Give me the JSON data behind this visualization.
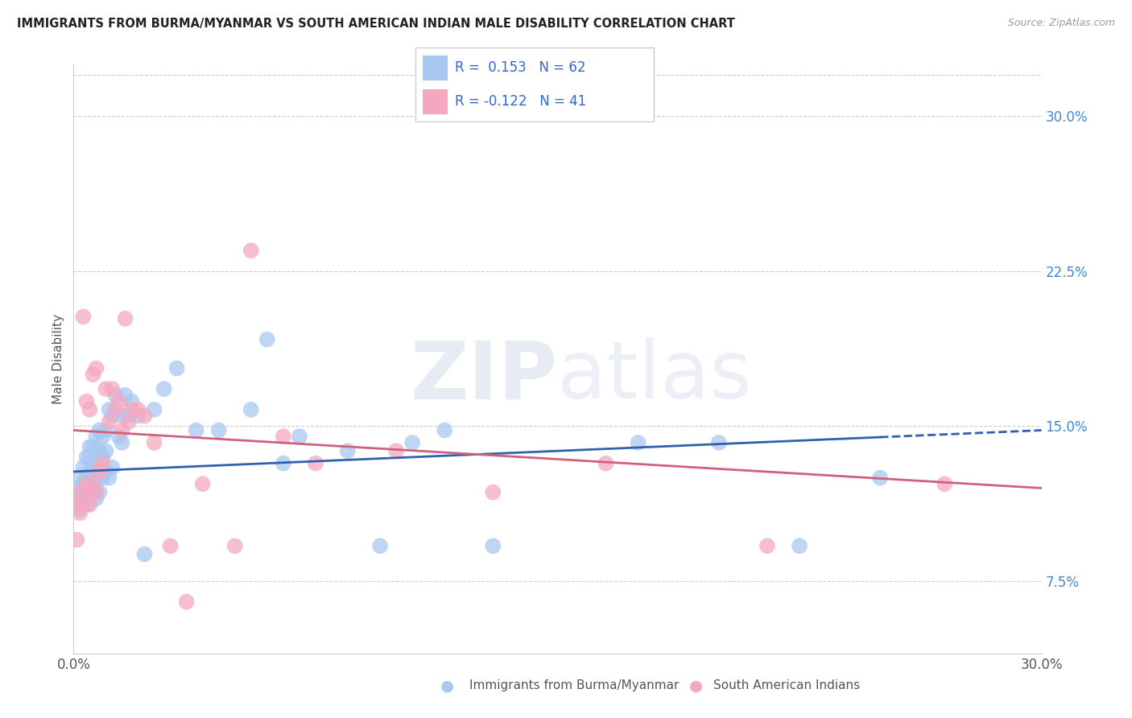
{
  "title": "IMMIGRANTS FROM BURMA/MYANMAR VS SOUTH AMERICAN INDIAN MALE DISABILITY CORRELATION CHART",
  "source": "Source: ZipAtlas.com",
  "ylabel": "Male Disability",
  "x_min": 0.0,
  "x_max": 0.3,
  "y_min": 0.04,
  "y_max": 0.325,
  "y_ticks_right": [
    0.075,
    0.15,
    0.225,
    0.3
  ],
  "y_tick_labels_right": [
    "7.5%",
    "15.0%",
    "22.5%",
    "30.0%"
  ],
  "legend_blue_r": "0.153",
  "legend_blue_n": "62",
  "legend_pink_r": "-0.122",
  "legend_pink_n": "41",
  "legend_label_blue": "Immigrants from Burma/Myanmar",
  "legend_label_pink": "South American Indians",
  "blue_color": "#A8C8F0",
  "pink_color": "#F4A8C0",
  "trend_blue_color": "#3060B0",
  "trend_pink_color": "#D06080",
  "blue_trend_start_y": 0.128,
  "blue_trend_end_y": 0.148,
  "pink_trend_start_y": 0.148,
  "pink_trend_end_y": 0.12,
  "blue_scatter_x": [
    0.001,
    0.002,
    0.002,
    0.002,
    0.003,
    0.003,
    0.003,
    0.004,
    0.004,
    0.004,
    0.005,
    0.005,
    0.005,
    0.005,
    0.006,
    0.006,
    0.006,
    0.007,
    0.007,
    0.007,
    0.007,
    0.008,
    0.008,
    0.008,
    0.008,
    0.009,
    0.009,
    0.009,
    0.01,
    0.01,
    0.01,
    0.011,
    0.011,
    0.012,
    0.012,
    0.013,
    0.014,
    0.015,
    0.015,
    0.016,
    0.017,
    0.018,
    0.02,
    0.022,
    0.025,
    0.028,
    0.032,
    0.038,
    0.045,
    0.055,
    0.06,
    0.065,
    0.07,
    0.085,
    0.095,
    0.105,
    0.115,
    0.13,
    0.175,
    0.2,
    0.225,
    0.25
  ],
  "blue_scatter_y": [
    0.115,
    0.11,
    0.12,
    0.125,
    0.118,
    0.122,
    0.13,
    0.112,
    0.125,
    0.135,
    0.118,
    0.128,
    0.135,
    0.14,
    0.12,
    0.128,
    0.14,
    0.115,
    0.125,
    0.132,
    0.145,
    0.118,
    0.128,
    0.138,
    0.148,
    0.125,
    0.135,
    0.145,
    0.128,
    0.138,
    0.148,
    0.125,
    0.158,
    0.13,
    0.155,
    0.165,
    0.145,
    0.142,
    0.155,
    0.165,
    0.155,
    0.162,
    0.155,
    0.088,
    0.158,
    0.168,
    0.178,
    0.148,
    0.148,
    0.158,
    0.192,
    0.132,
    0.145,
    0.138,
    0.092,
    0.142,
    0.148,
    0.092,
    0.142,
    0.142,
    0.092,
    0.125
  ],
  "pink_scatter_x": [
    0.001,
    0.001,
    0.002,
    0.002,
    0.003,
    0.003,
    0.004,
    0.004,
    0.005,
    0.005,
    0.005,
    0.006,
    0.006,
    0.007,
    0.007,
    0.008,
    0.009,
    0.01,
    0.011,
    0.012,
    0.013,
    0.014,
    0.015,
    0.016,
    0.017,
    0.018,
    0.02,
    0.022,
    0.025,
    0.03,
    0.035,
    0.04,
    0.05,
    0.055,
    0.065,
    0.075,
    0.1,
    0.13,
    0.165,
    0.215,
    0.27
  ],
  "pink_scatter_y": [
    0.112,
    0.095,
    0.118,
    0.108,
    0.112,
    0.203,
    0.122,
    0.162,
    0.112,
    0.118,
    0.158,
    0.175,
    0.122,
    0.178,
    0.118,
    0.128,
    0.132,
    0.168,
    0.152,
    0.168,
    0.158,
    0.162,
    0.148,
    0.202,
    0.152,
    0.158,
    0.158,
    0.155,
    0.142,
    0.092,
    0.065,
    0.122,
    0.092,
    0.235,
    0.145,
    0.132,
    0.138,
    0.118,
    0.132,
    0.092,
    0.122
  ]
}
